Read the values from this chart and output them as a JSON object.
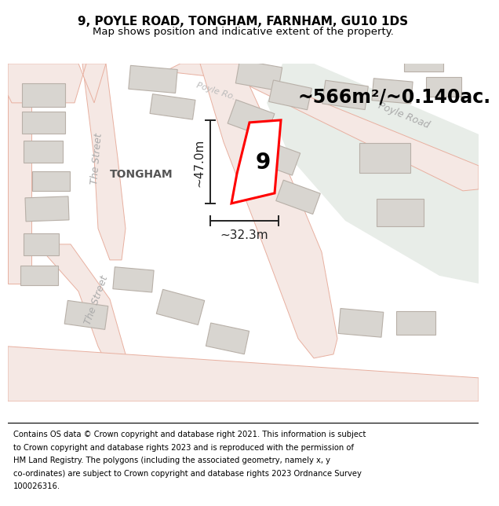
{
  "title": "9, POYLE ROAD, TONGHAM, FARNHAM, GU10 1DS",
  "subtitle": "Map shows position and indicative extent of the property.",
  "map_bg": "#f7f4f0",
  "road_fill": "#f5e8e4",
  "road_edge": "#e8b0a0",
  "road_edge_lw": 0.7,
  "green_fill": "#e8ede8",
  "green_edge": "none",
  "building_fill": "#d8d5d0",
  "building_edge": "#b8b0a8",
  "building_lw": 0.8,
  "highlight_fill": "#ffffff",
  "highlight_edge": "#ff0000",
  "highlight_lw": 2.2,
  "dim_color": "#222222",
  "area_text": "~566m²/~0.140ac.",
  "area_text_size": 17,
  "property_label": "9",
  "property_label_size": 20,
  "width_label": "~32.3m",
  "height_label": "~47.0m",
  "dim_label_size": 11,
  "street_label_1": "The Street",
  "street_label_2": "Poyle Road",
  "place_label": "TONGHAM",
  "title_fontsize": 11,
  "subtitle_fontsize": 9.5,
  "footer_fontsize": 7.2,
  "footer_lines": [
    "Contains OS data © Crown copyright and database right 2021. This information is subject",
    "to Crown copyright and database rights 2023 and is reproduced with the permission of",
    "HM Land Registry. The polygons (including the associated geometry, namely x, y",
    "co-ordinates) are subject to Crown copyright and database rights 2023 Ordnance Survey",
    "100026316."
  ]
}
